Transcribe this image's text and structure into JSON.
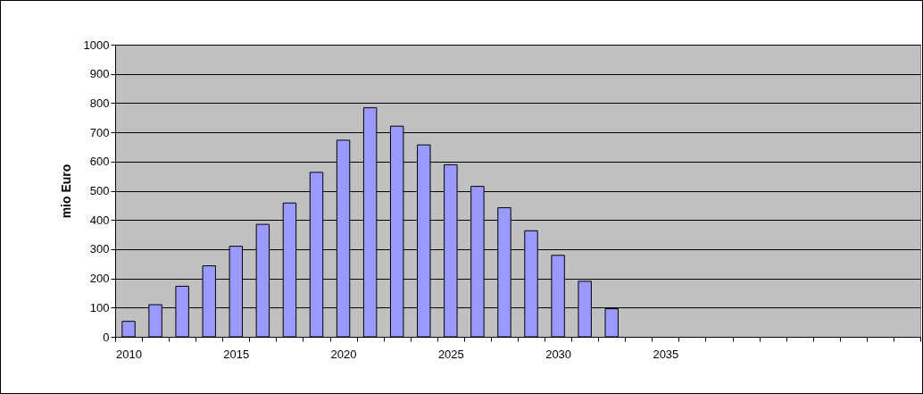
{
  "chart_data": {
    "type": "bar",
    "ylabel": "mio Euro",
    "categories": [
      "2010",
      null,
      null,
      null,
      "2015",
      null,
      null,
      null,
      "2020",
      null,
      null,
      null,
      "2025",
      null,
      null,
      null,
      "2030",
      null,
      null,
      null,
      "2035",
      null,
      null,
      null,
      null,
      null,
      null,
      null,
      null,
      null
    ],
    "values": [
      53,
      110,
      173,
      243,
      310,
      385,
      458,
      563,
      673,
      784,
      721,
      657,
      589,
      515,
      442,
      363,
      279,
      190,
      96,
      null,
      null,
      null,
      null,
      null,
      null,
      null,
      null,
      null,
      null,
      null
    ],
    "color": "#9999ff",
    "ylim": [
      0,
      1000
    ],
    "yticks": [
      0,
      100,
      200,
      300,
      400,
      500,
      600,
      700,
      800,
      900,
      1000
    ],
    "grid": true
  }
}
